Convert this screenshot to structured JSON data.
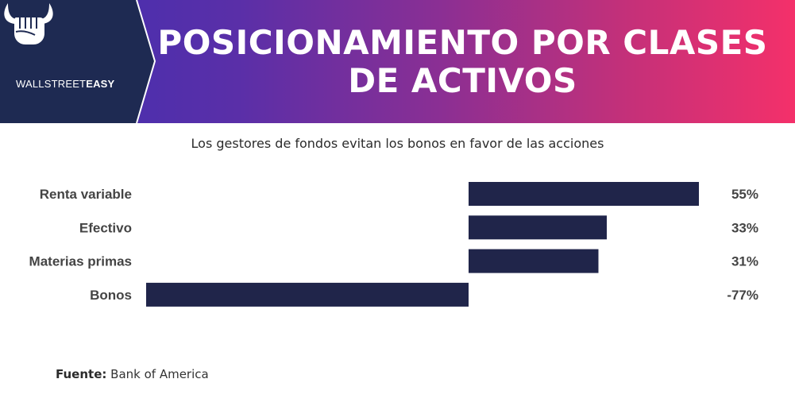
{
  "brand": {
    "name_part1": "WALLSTREET",
    "name_part2": "EASY",
    "logo_icon": "bull-fist-icon",
    "panel_color": "#1e2a52"
  },
  "header": {
    "title": "POSICIONAMIENTO POR CLASES DE ACTIVOS",
    "gradient_start": "#3e2fb2",
    "gradient_end": "#f4306a"
  },
  "subtitle": "Los gestores de fondos evitan los bonos en favor de las acciones",
  "source": {
    "label": "Fuente:",
    "value": "Bank of America"
  },
  "chart_data": {
    "type": "bar",
    "orientation": "horizontal",
    "categories": [
      "Renta variable",
      "Efectivo",
      "Materias primas",
      "Bonos"
    ],
    "values": [
      55,
      33,
      31,
      -77
    ],
    "value_labels": [
      "55%",
      "33%",
      "31%",
      "-77%"
    ],
    "xlim": [
      -77,
      57
    ],
    "bar_color": "#20254a",
    "grid": false,
    "legend": "none"
  }
}
